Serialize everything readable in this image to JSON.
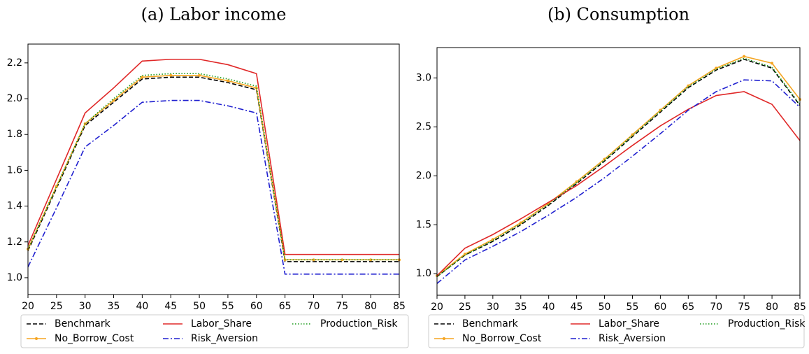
{
  "chart_data": [
    {
      "type": "line",
      "title": "(a) Labor income",
      "x": [
        20,
        25,
        30,
        35,
        40,
        45,
        50,
        55,
        60,
        65,
        70,
        75,
        80,
        85
      ],
      "xlim": [
        20,
        85
      ],
      "xticks": [
        20,
        25,
        30,
        35,
        40,
        45,
        50,
        55,
        60,
        65,
        70,
        75,
        80,
        85
      ],
      "ylim": [
        0.906,
        2.305
      ],
      "yticks": [
        {
          "value": 1.0,
          "label": "1.0"
        },
        1.2,
        1.4,
        1.6,
        1.8,
        {
          "value": 2.0,
          "label": "2.0"
        },
        2.2
      ],
      "series": [
        {
          "name": "Benchmark",
          "color": "#000000",
          "style": "dashed",
          "values": [
            1.15,
            1.5,
            1.85,
            1.98,
            2.11,
            2.12,
            2.12,
            2.09,
            2.05,
            1.09,
            1.09,
            1.09,
            1.09,
            1.09
          ]
        },
        {
          "name": "No_Borrow_Cost",
          "color": "#f5a623",
          "style": "solid",
          "marker": true,
          "values": [
            1.16,
            1.51,
            1.86,
            1.99,
            2.12,
            2.13,
            2.13,
            2.1,
            2.06,
            1.1,
            1.1,
            1.1,
            1.1,
            1.1
          ]
        },
        {
          "name": "Labor_Share",
          "color": "#e02828",
          "style": "solid",
          "values": [
            1.18,
            1.55,
            1.92,
            2.06,
            2.21,
            2.22,
            2.22,
            2.19,
            2.14,
            1.13,
            1.13,
            1.13,
            1.13,
            1.13
          ]
        },
        {
          "name": "Risk_Aversion",
          "color": "#2020d0",
          "style": "dashdot",
          "values": [
            1.06,
            1.39,
            1.73,
            1.85,
            1.98,
            1.99,
            1.99,
            1.96,
            1.92,
            1.02,
            1.02,
            1.02,
            1.02,
            1.02
          ]
        },
        {
          "name": "Production_Risk",
          "color": "#1a9a1a",
          "style": "dotted",
          "values": [
            1.16,
            1.51,
            1.86,
            2.0,
            2.13,
            2.14,
            2.14,
            2.11,
            2.07,
            1.1,
            1.1,
            1.1,
            1.1,
            1.1
          ]
        }
      ]
    },
    {
      "type": "line",
      "title": "(b) Consumption",
      "x": [
        20,
        25,
        30,
        35,
        40,
        45,
        50,
        55,
        60,
        65,
        70,
        75,
        80,
        85
      ],
      "xlim": [
        20,
        85
      ],
      "xticks": [
        20,
        25,
        30,
        35,
        40,
        45,
        50,
        55,
        60,
        65,
        70,
        75,
        80,
        85
      ],
      "ylim": [
        0.78,
        3.31
      ],
      "yticks": [
        {
          "value": 1.0,
          "label": "1.0"
        },
        1.5,
        {
          "value": 2.0,
          "label": "2.0"
        },
        2.5,
        {
          "value": 3.0,
          "label": "3.0"
        }
      ],
      "series": [
        {
          "name": "Benchmark",
          "color": "#000000",
          "style": "dashed",
          "values": [
            0.97,
            1.19,
            1.33,
            1.5,
            1.7,
            1.92,
            2.15,
            2.4,
            2.65,
            2.9,
            3.08,
            3.19,
            3.1,
            2.72
          ]
        },
        {
          "name": "No_Borrow_Cost",
          "color": "#f5a623",
          "style": "solid",
          "marker": true,
          "values": [
            0.98,
            1.2,
            1.35,
            1.52,
            1.72,
            1.94,
            2.17,
            2.42,
            2.67,
            2.92,
            3.1,
            3.22,
            3.15,
            2.78
          ]
        },
        {
          "name": "Labor_Share",
          "color": "#e02828",
          "style": "solid",
          "values": [
            0.98,
            1.26,
            1.4,
            1.56,
            1.73,
            1.9,
            2.1,
            2.31,
            2.51,
            2.68,
            2.82,
            2.86,
            2.73,
            2.36
          ]
        },
        {
          "name": "Risk_Aversion",
          "color": "#2020d0",
          "style": "dashdot",
          "values": [
            0.9,
            1.14,
            1.28,
            1.43,
            1.6,
            1.78,
            1.98,
            2.2,
            2.43,
            2.67,
            2.86,
            2.98,
            2.97,
            2.7
          ]
        },
        {
          "name": "Production_Risk",
          "color": "#1a9a1a",
          "style": "dotted",
          "values": [
            0.97,
            1.19,
            1.34,
            1.51,
            1.71,
            1.93,
            2.16,
            2.41,
            2.66,
            2.91,
            3.09,
            3.2,
            3.11,
            2.73
          ]
        }
      ]
    }
  ]
}
